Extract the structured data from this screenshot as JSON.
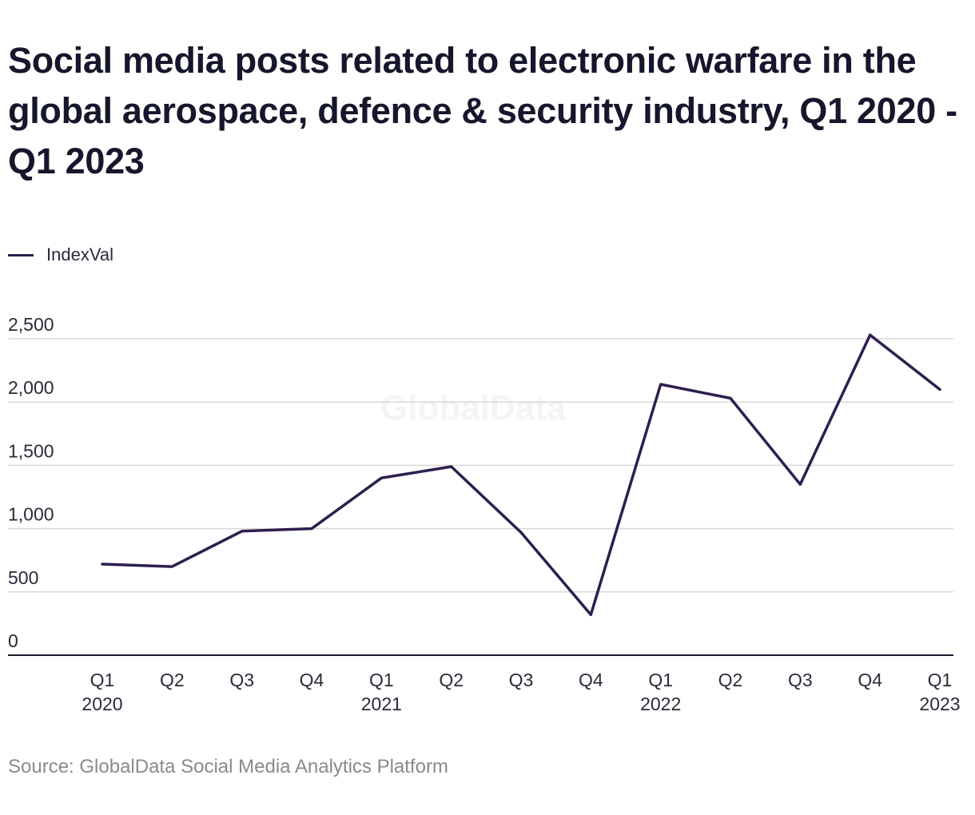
{
  "title": "Social media posts related to electronic warfare in the global aerospace, defence & security industry, Q1 2020 - Q1 2023",
  "watermark": "GlobalData",
  "source": "Source: GlobalData Social Media Analytics Platform",
  "colors": {
    "line": "#2e1f4f",
    "grid": "#d9d9d9",
    "axis": "#1a1a2e"
  },
  "chart_data": {
    "type": "line",
    "title": "Social media posts related to electronic warfare in the global aerospace, defence & security industry, Q1 2020 - Q1 2023",
    "xlabel": "",
    "ylabel": "",
    "legend_position": "top-left",
    "grid": true,
    "categories": [
      [
        "Q1",
        "2020"
      ],
      [
        "Q2",
        ""
      ],
      [
        "Q3",
        ""
      ],
      [
        "Q4",
        ""
      ],
      [
        "Q1",
        "2021"
      ],
      [
        "Q2",
        ""
      ],
      [
        "Q3",
        ""
      ],
      [
        "Q4",
        ""
      ],
      [
        "Q1",
        "2022"
      ],
      [
        "Q2",
        ""
      ],
      [
        "Q3",
        ""
      ],
      [
        "Q4",
        ""
      ],
      [
        "Q1",
        "2023"
      ]
    ],
    "series": [
      {
        "name": "IndexVal",
        "values": [
          720,
          700,
          980,
          1000,
          1400,
          1490,
          970,
          320,
          2140,
          2030,
          1350,
          2530,
          2100
        ]
      }
    ],
    "ylim": [
      0,
      2500
    ],
    "yticks": [
      0,
      500,
      1000,
      1500,
      2000,
      2500
    ],
    "ytick_labels": [
      "0",
      "500",
      "1,000",
      "1,500",
      "2,000",
      "2,500"
    ]
  }
}
